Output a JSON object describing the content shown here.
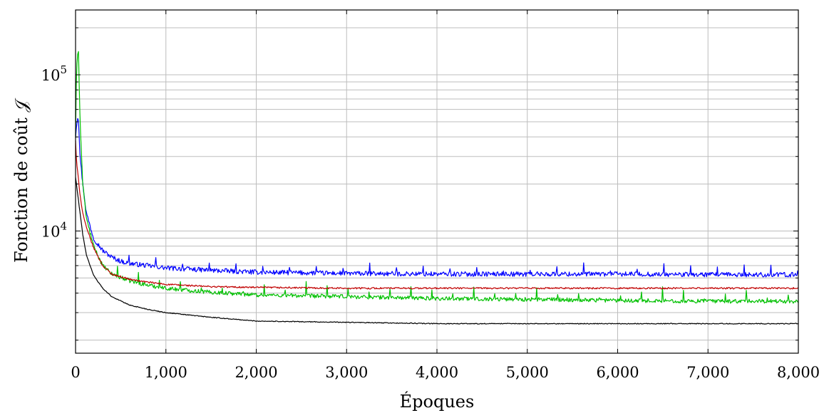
{
  "chart_data": {
    "type": "line",
    "title": "",
    "xlabel": "Époques",
    "ylabel": "Fonction de coût 𝒥",
    "xscale": "linear",
    "yscale": "log",
    "xlim": [
      0,
      8000
    ],
    "ylim": [
      1650,
      260000
    ],
    "grid": true,
    "legend": "none",
    "x_ticks": [
      0,
      1000,
      2000,
      3000,
      4000,
      5000,
      6000,
      7000,
      8000
    ],
    "x_tick_labels": [
      "0",
      "1,000",
      "2,000",
      "3,000",
      "4,000",
      "5,000",
      "6,000",
      "7,000",
      "8,000"
    ],
    "y_tick_labels": [
      {
        "value": 10000,
        "base": "10",
        "exp": "4"
      },
      {
        "value": 100000,
        "base": "10",
        "exp": "5"
      }
    ],
    "series": [
      {
        "color": "#0000ff",
        "noise": 0.035,
        "spike_every": 37,
        "spike_amp": 0.12,
        "x": [
          0,
          10,
          30,
          50,
          80,
          120,
          200,
          300,
          400,
          500,
          600,
          800,
          1000,
          1500,
          2000,
          3000,
          4000,
          5000,
          6000,
          7000,
          8000
        ],
        "y": [
          40000,
          48000,
          56000,
          30000,
          20000,
          13000,
          9000,
          7500,
          6800,
          6400,
          6200,
          6000,
          5800,
          5600,
          5450,
          5350,
          5300,
          5300,
          5300,
          5250,
          5250
        ]
      },
      {
        "color": "#00c000",
        "noise": 0.03,
        "spike_every": 29,
        "spike_amp": 0.15,
        "x": [
          0,
          10,
          30,
          50,
          80,
          120,
          200,
          300,
          400,
          600,
          800,
          1000,
          1500,
          2000,
          3000,
          4000,
          5000,
          6000,
          7000,
          8000
        ],
        "y": [
          40000,
          100000,
          160000,
          50000,
          20000,
          12000,
          8000,
          6000,
          5300,
          4800,
          4500,
          4300,
          4050,
          3900,
          3800,
          3700,
          3650,
          3600,
          3550,
          3550
        ]
      },
      {
        "color": "#c00000",
        "noise": 0.012,
        "spike_every": 0,
        "spike_amp": 0,
        "x": [
          0,
          10,
          30,
          50,
          80,
          120,
          200,
          300,
          400,
          600,
          800,
          1000,
          1500,
          2000,
          3000,
          4000,
          5000,
          6000,
          7000,
          8000
        ],
        "y": [
          38000,
          28000,
          22000,
          17000,
          13000,
          10500,
          7800,
          6000,
          5300,
          4900,
          4700,
          4550,
          4400,
          4350,
          4300,
          4300,
          4300,
          4300,
          4300,
          4300
        ]
      },
      {
        "color": "#000000",
        "noise": 0.006,
        "spike_every": 0,
        "spike_amp": 0,
        "x": [
          0,
          10,
          30,
          50,
          80,
          120,
          200,
          300,
          400,
          600,
          800,
          1000,
          1500,
          2000,
          3000,
          4000,
          5000,
          6000,
          7000,
          8000
        ],
        "y": [
          22000,
          20000,
          16000,
          13000,
          9500,
          7000,
          5200,
          4300,
          3800,
          3350,
          3150,
          3000,
          2800,
          2650,
          2600,
          2550,
          2550,
          2550,
          2550,
          2550
        ]
      }
    ]
  }
}
